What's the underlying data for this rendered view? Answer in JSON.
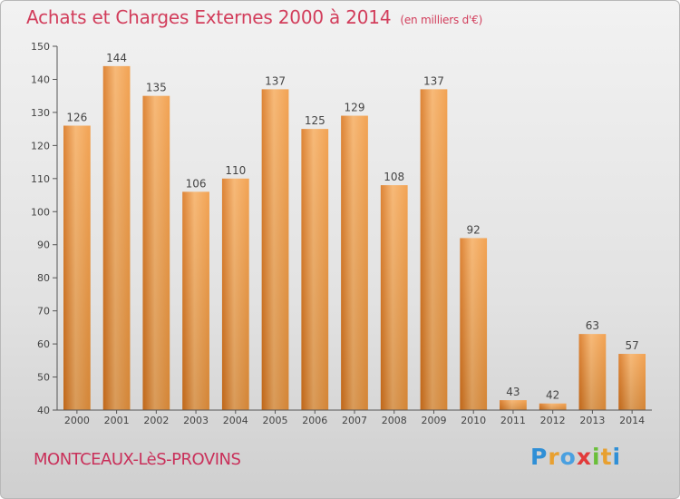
{
  "header": {
    "title": "Achats et Charges Externes 2000 à 2014",
    "subtitle": "(en milliers d'€)"
  },
  "footer": {
    "city": "MONTCEAUX-LèS-PROVINS",
    "brand_letters": [
      "P",
      "r",
      "o",
      "x",
      "i",
      "t",
      "i"
    ],
    "brand_colors": [
      "#2f8fd6",
      "#e8a030",
      "#4aa0e0",
      "#e23a3a",
      "#6abf3a",
      "#e8a030",
      "#2f8fd6"
    ]
  },
  "colors": {
    "bar": "#f0963c",
    "bar_light": "#f6b066",
    "bar_dark": "#d9741c",
    "axis": "#555555"
  },
  "chart_data": {
    "type": "bar",
    "title": "Achats et Charges Externes 2000 à 2014",
    "subtitle": "(en milliers d'€)",
    "categories": [
      "2000",
      "2001",
      "2002",
      "2003",
      "2004",
      "2005",
      "2006",
      "2007",
      "2008",
      "2009",
      "2010",
      "2011",
      "2012",
      "2013",
      "2014"
    ],
    "values": [
      126,
      144,
      135,
      106,
      110,
      137,
      125,
      129,
      108,
      137,
      92,
      43,
      42,
      63,
      57
    ],
    "ylim": [
      40,
      150
    ],
    "yticks": [
      40,
      50,
      60,
      70,
      80,
      90,
      100,
      110,
      120,
      130,
      140,
      150
    ],
    "grid": false,
    "legend": "none"
  }
}
